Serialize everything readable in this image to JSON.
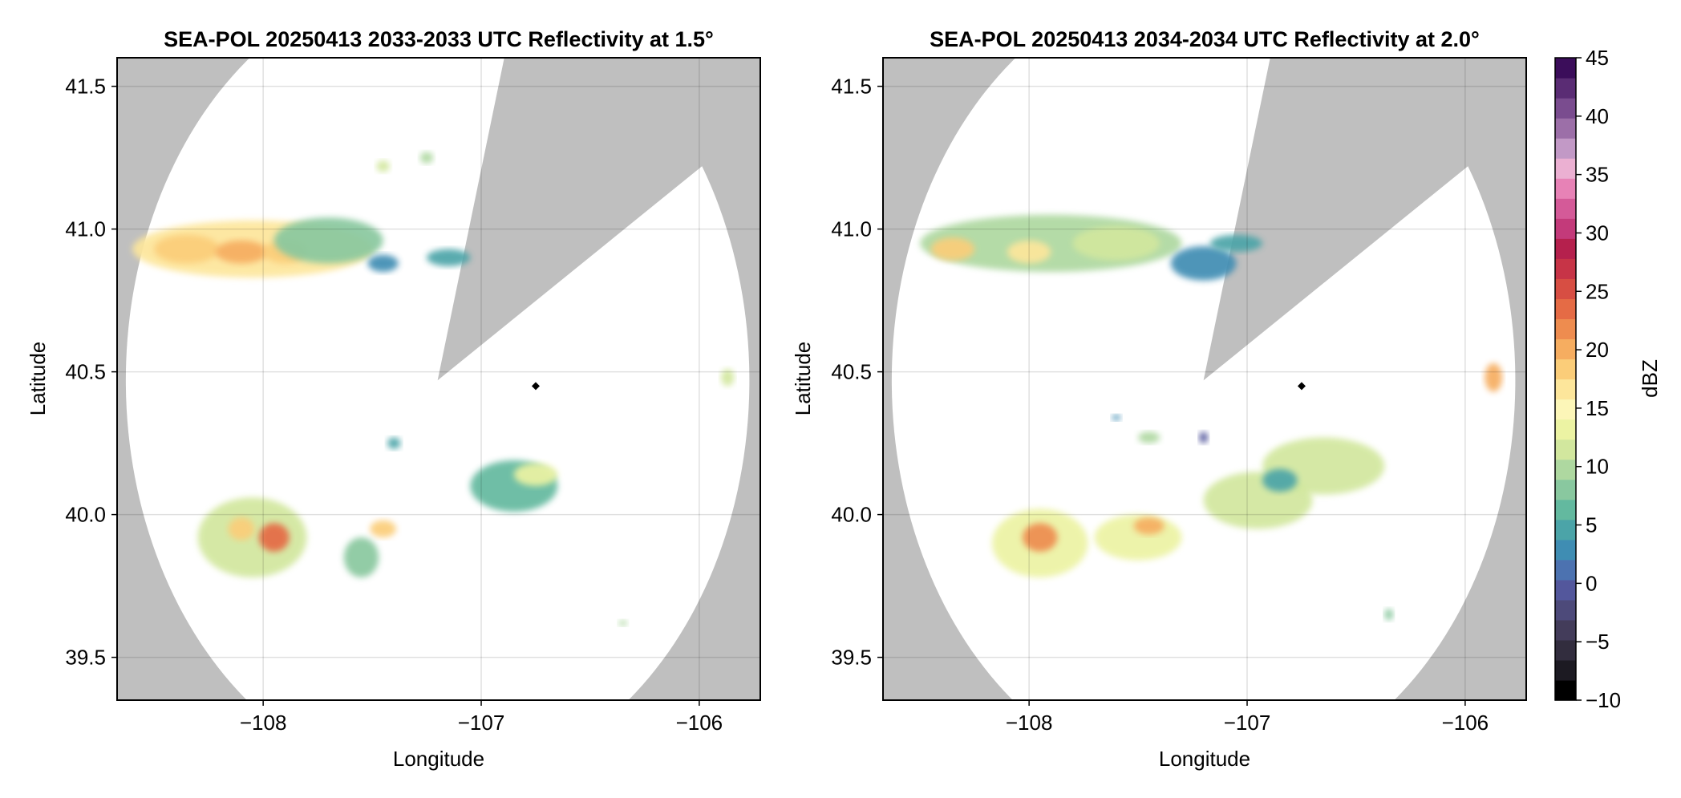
{
  "chart_data": [
    {
      "type": "heatmap",
      "title": "SEA-POL 20250413 2033-2033 UTC Reflectivity at 1.5°",
      "xlabel": "Longitude",
      "ylabel": "Latitude",
      "xlim": [
        -108.67,
        -105.72
      ],
      "ylim": [
        39.35,
        41.6
      ],
      "x_ticks": [
        -108,
        -107,
        -106
      ],
      "y_ticks": [
        39.5,
        40.0,
        40.5,
        41.0,
        41.5
      ],
      "x_tick_labels": [
        "−108",
        "−107",
        "−106"
      ],
      "y_tick_labels": [
        "39.5",
        "40.0",
        "40.5",
        "41.0",
        "41.5"
      ],
      "grid": true,
      "radar_center": {
        "lon": -107.2,
        "lat": 40.47
      },
      "coverage_radius_deg": 1.43,
      "blocked_sector": {
        "from_bearing_deg": 15,
        "to_bearing_deg": 58
      },
      "site_marker": {
        "lon": -106.75,
        "lat": 40.45
      },
      "echoes": [
        {
          "lon": -108.05,
          "lat": 40.93,
          "dlon": 0.55,
          "dlat": 0.1,
          "dbz": 28
        },
        {
          "lon": -108.35,
          "lat": 40.93,
          "dlon": 0.15,
          "dlat": 0.05,
          "dbz": 32
        },
        {
          "lon": -108.1,
          "lat": 40.92,
          "dlon": 0.12,
          "dlat": 0.04,
          "dbz": 33
        },
        {
          "lon": -107.9,
          "lat": 40.92,
          "dlon": 0.1,
          "dlat": 0.04,
          "dbz": 31
        },
        {
          "lon": -107.7,
          "lat": 40.96,
          "dlon": 0.25,
          "dlat": 0.08,
          "dbz": 15
        },
        {
          "lon": -107.45,
          "lat": 40.88,
          "dlon": 0.07,
          "dlat": 0.03,
          "dbz": 8
        },
        {
          "lon": -107.15,
          "lat": 40.9,
          "dlon": 0.1,
          "dlat": 0.03,
          "dbz": 10
        },
        {
          "lon": -107.45,
          "lat": 41.22,
          "dlon": 0.03,
          "dlat": 0.02,
          "dbz": 22
        },
        {
          "lon": -107.25,
          "lat": 41.25,
          "dlon": 0.03,
          "dlat": 0.02,
          "dbz": 18
        },
        {
          "lon": -108.05,
          "lat": 39.92,
          "dlon": 0.25,
          "dlat": 0.14,
          "dbz": 22
        },
        {
          "lon": -107.95,
          "lat": 39.92,
          "dlon": 0.07,
          "dlat": 0.05,
          "dbz": 38
        },
        {
          "lon": -108.1,
          "lat": 39.95,
          "dlon": 0.06,
          "dlat": 0.04,
          "dbz": 30
        },
        {
          "lon": -107.45,
          "lat": 39.95,
          "dlon": 0.06,
          "dlat": 0.03,
          "dbz": 30
        },
        {
          "lon": -107.55,
          "lat": 39.85,
          "dlon": 0.08,
          "dlat": 0.07,
          "dbz": 15
        },
        {
          "lon": -106.85,
          "lat": 40.1,
          "dlon": 0.2,
          "dlat": 0.09,
          "dbz": 14
        },
        {
          "lon": -106.75,
          "lat": 40.14,
          "dlon": 0.1,
          "dlat": 0.04,
          "dbz": 24
        },
        {
          "lon": -107.4,
          "lat": 40.25,
          "dlon": 0.03,
          "dlat": 0.02,
          "dbz": 10
        },
        {
          "lon": -105.87,
          "lat": 40.48,
          "dlon": 0.03,
          "dlat": 0.03,
          "dbz": 20
        },
        {
          "lon": -106.35,
          "lat": 39.62,
          "dlon": 0.02,
          "dlat": 0.01,
          "dbz": 18
        }
      ]
    },
    {
      "type": "heatmap",
      "title": "SEA-POL 20250413 2034-2034 UTC Reflectivity at 2.0°",
      "xlabel": "Longitude",
      "ylabel": "Latitude",
      "xlim": [
        -108.67,
        -105.72
      ],
      "ylim": [
        39.35,
        41.6
      ],
      "x_ticks": [
        -108,
        -107,
        -106
      ],
      "y_ticks": [
        39.5,
        40.0,
        40.5,
        41.0,
        41.5
      ],
      "x_tick_labels": [
        "−108",
        "−107",
        "−106"
      ],
      "y_tick_labels": [
        "39.5",
        "40.0",
        "40.5",
        "41.0",
        "41.5"
      ],
      "grid": true,
      "radar_center": {
        "lon": -107.2,
        "lat": 40.47
      },
      "coverage_radius_deg": 1.43,
      "blocked_sector": {
        "from_bearing_deg": 15,
        "to_bearing_deg": 58
      },
      "site_marker": {
        "lon": -106.75,
        "lat": 40.45
      },
      "echoes": [
        {
          "lon": -107.9,
          "lat": 40.95,
          "dlon": 0.6,
          "dlat": 0.1,
          "dbz": 18
        },
        {
          "lon": -108.35,
          "lat": 40.93,
          "dlon": 0.1,
          "dlat": 0.04,
          "dbz": 30
        },
        {
          "lon": -108.0,
          "lat": 40.92,
          "dlon": 0.1,
          "dlat": 0.04,
          "dbz": 28
        },
        {
          "lon": -107.6,
          "lat": 40.95,
          "dlon": 0.2,
          "dlat": 0.06,
          "dbz": 20
        },
        {
          "lon": -107.2,
          "lat": 40.88,
          "dlon": 0.15,
          "dlat": 0.06,
          "dbz": 9
        },
        {
          "lon": -107.05,
          "lat": 40.95,
          "dlon": 0.12,
          "dlat": 0.03,
          "dbz": 12
        },
        {
          "lon": -107.95,
          "lat": 39.9,
          "dlon": 0.22,
          "dlat": 0.12,
          "dbz": 24
        },
        {
          "lon": -107.95,
          "lat": 39.92,
          "dlon": 0.08,
          "dlat": 0.05,
          "dbz": 36
        },
        {
          "lon": -107.5,
          "lat": 39.92,
          "dlon": 0.2,
          "dlat": 0.08,
          "dbz": 24
        },
        {
          "lon": -107.45,
          "lat": 39.96,
          "dlon": 0.07,
          "dlat": 0.03,
          "dbz": 34
        },
        {
          "lon": -106.95,
          "lat": 40.05,
          "dlon": 0.25,
          "dlat": 0.1,
          "dbz": 20
        },
        {
          "lon": -106.65,
          "lat": 40.17,
          "dlon": 0.28,
          "dlat": 0.1,
          "dbz": 20
        },
        {
          "lon": -106.85,
          "lat": 40.12,
          "dlon": 0.08,
          "dlat": 0.04,
          "dbz": 10
        },
        {
          "lon": -107.45,
          "lat": 40.27,
          "dlon": 0.05,
          "dlat": 0.02,
          "dbz": 18
        },
        {
          "lon": -107.2,
          "lat": 40.27,
          "dlon": 0.02,
          "dlat": 0.02,
          "dbz": 3
        },
        {
          "lon": -107.6,
          "lat": 40.34,
          "dlon": 0.02,
          "dlat": 0.01,
          "dbz": 8
        },
        {
          "lon": -105.87,
          "lat": 40.48,
          "dlon": 0.04,
          "dlat": 0.05,
          "dbz": 33
        },
        {
          "lon": -106.35,
          "lat": 39.65,
          "dlon": 0.02,
          "dlat": 0.02,
          "dbz": 17
        }
      ]
    }
  ],
  "colorbar": {
    "label": "dBZ",
    "min": -10,
    "max": 45,
    "step": 2.5,
    "ticks": [
      45,
      40,
      35,
      30,
      25,
      20,
      15,
      10,
      5,
      0,
      -5,
      -10
    ],
    "tick_labels": [
      "45",
      "40",
      "35",
      "30",
      "25",
      "20",
      "15",
      "10",
      "5",
      "0",
      "−5",
      "−10"
    ],
    "colors": [
      "#000000",
      "#1c1a22",
      "#322d3e",
      "#433c5a",
      "#4d4a7a",
      "#53579c",
      "#4c72b0",
      "#3f8db3",
      "#4ba4a8",
      "#63b99f",
      "#89c89f",
      "#aed8a0",
      "#d2e79e",
      "#ecf3a3",
      "#fcf6b8",
      "#fde69b",
      "#fbcd79",
      "#f6ad60",
      "#ee8c4f",
      "#e56b45",
      "#d74e43",
      "#c73447",
      "#b5204d",
      "#c33a7a",
      "#d45a98",
      "#e782b6",
      "#ebb0d2",
      "#c299c6",
      "#9c6fa8",
      "#7a4c8f",
      "#5a2c74",
      "#3b0d5a"
    ]
  }
}
